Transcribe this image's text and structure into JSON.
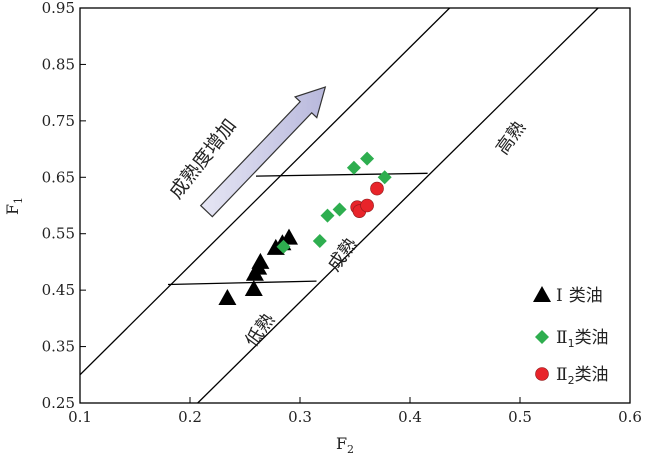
{
  "chart_data": {
    "type": "scatter",
    "xlabel": "F",
    "xlabel_sub": "2",
    "ylabel": "F",
    "ylabel_sub": "1",
    "xlim": [
      0.1,
      0.6
    ],
    "ylim": [
      0.25,
      0.95
    ],
    "xticks": [
      0.1,
      0.2,
      0.3,
      0.4,
      0.5,
      0.6
    ],
    "xtick_labels": [
      "0.1",
      "0.2",
      "0.3",
      "0.4",
      "0.5",
      "0.6"
    ],
    "yticks": [
      0.25,
      0.35,
      0.45,
      0.55,
      0.65,
      0.75,
      0.85,
      0.95
    ],
    "ytick_labels": [
      "0.25",
      "0.35",
      "0.45",
      "0.55",
      "0.65",
      "0.75",
      "0.85",
      "0.95"
    ],
    "grid": false,
    "legend_position": "bottom-right",
    "series": [
      {
        "name": "Ⅰ类油",
        "legend_roman": "Ⅰ",
        "legend_sub": "",
        "legend_text": "类油",
        "marker": "triangle",
        "color": "#000000",
        "points": [
          {
            "x": 0.234,
            "y": 0.436
          },
          {
            "x": 0.258,
            "y": 0.452
          },
          {
            "x": 0.259,
            "y": 0.479
          },
          {
            "x": 0.262,
            "y": 0.49
          },
          {
            "x": 0.264,
            "y": 0.5
          },
          {
            "x": 0.278,
            "y": 0.525
          },
          {
            "x": 0.284,
            "y": 0.533
          },
          {
            "x": 0.29,
            "y": 0.543
          }
        ]
      },
      {
        "name": "Ⅱ1类油",
        "legend_roman": "Ⅱ",
        "legend_sub": "1",
        "legend_text": "类油",
        "marker": "diamond",
        "color": "#2eae4f",
        "points": [
          {
            "x": 0.285,
            "y": 0.527
          },
          {
            "x": 0.318,
            "y": 0.537
          },
          {
            "x": 0.325,
            "y": 0.582
          },
          {
            "x": 0.336,
            "y": 0.593
          },
          {
            "x": 0.349,
            "y": 0.667
          },
          {
            "x": 0.361,
            "y": 0.683
          },
          {
            "x": 0.377,
            "y": 0.65
          }
        ]
      },
      {
        "name": "Ⅱ2类油",
        "legend_roman": "Ⅱ",
        "legend_sub": "2",
        "legend_text": "类油",
        "marker": "circle",
        "color": "#e8242a",
        "points": [
          {
            "x": 0.352,
            "y": 0.597
          },
          {
            "x": 0.354,
            "y": 0.59
          },
          {
            "x": 0.361,
            "y": 0.6
          },
          {
            "x": 0.37,
            "y": 0.63
          }
        ]
      }
    ],
    "boundary_lines": [
      {
        "from": [
          0.1,
          0.3
        ],
        "to": [
          0.436,
          0.95
        ]
      },
      {
        "from": [
          0.207,
          0.25
        ],
        "to": [
          0.571,
          0.95
        ]
      },
      {
        "from": [
          0.18,
          0.46
        ],
        "to": [
          0.315,
          0.466
        ]
      },
      {
        "from": [
          0.26,
          0.652
        ],
        "to": [
          0.416,
          0.657
        ]
      }
    ],
    "annotations": [
      {
        "text": "低熟",
        "x": 0.268,
        "y": 0.373,
        "angle": -54
      },
      {
        "text": "成熟",
        "x": 0.343,
        "y": 0.507,
        "angle": -54
      },
      {
        "text": "高熟",
        "x": 0.496,
        "y": 0.714,
        "angle": -54
      },
      {
        "text": "成熟度增加",
        "x": 0.216,
        "y": 0.676,
        "angle": -52
      }
    ],
    "arrow": {
      "from": [
        0.215,
        0.59
      ],
      "to": [
        0.323,
        0.81
      ]
    }
  }
}
